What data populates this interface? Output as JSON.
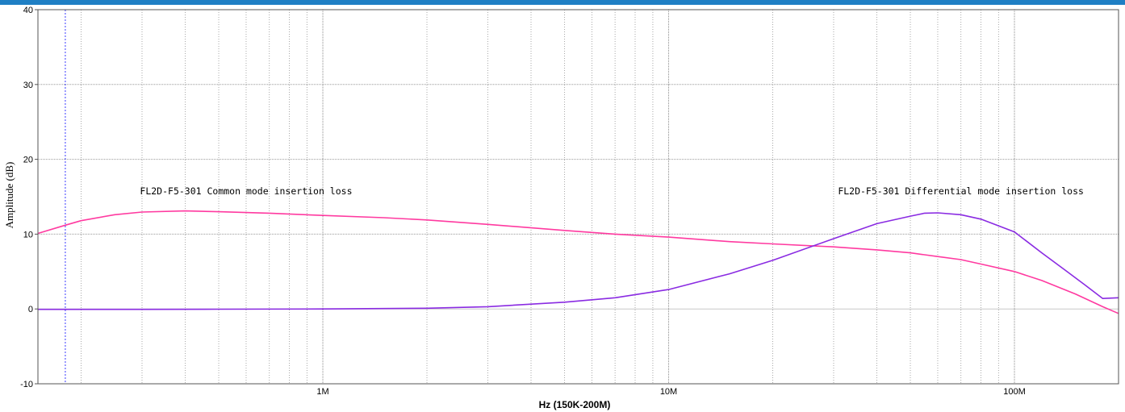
{
  "chart_data": {
    "type": "line",
    "title": "",
    "xlabel": "Hz  (150K-200M)",
    "ylabel": "Amplitude (dB)",
    "x_scale": "log",
    "xlim": [
      150000,
      200000000
    ],
    "ylim": [
      -10,
      40
    ],
    "y_ticks": [
      -10,
      0,
      10,
      20,
      30,
      40
    ],
    "x_tick_labels": [
      {
        "value": 1000000,
        "label": "1M"
      },
      {
        "value": 10000000,
        "label": "10M"
      },
      {
        "value": 100000000,
        "label": "100M"
      }
    ],
    "grid": true,
    "marker_frequency": 180000,
    "annotations": [
      {
        "text": "FL2D-F5-301 Common mode insertion loss",
        "x": 600000,
        "y": 15.3
      },
      {
        "text": "FL2D-F5-301 Differential mode insertion loss",
        "x": 70000000,
        "y": 15.3
      }
    ],
    "series": [
      {
        "name": "FL2D-F5-301 Common mode insertion loss",
        "color": "#ff3aa0",
        "x": [
          150000,
          180000,
          200000,
          250000,
          300000,
          400000,
          500000,
          700000,
          1000000,
          1500000,
          2000000,
          3000000,
          5000000,
          7000000,
          10000000,
          15000000,
          20000000,
          30000000,
          40000000,
          50000000,
          60000000,
          70000000,
          80000000,
          100000000,
          120000000,
          150000000,
          180000000,
          200000000
        ],
        "y": [
          10.1,
          11.2,
          11.8,
          12.6,
          12.95,
          13.1,
          13.0,
          12.8,
          12.5,
          12.2,
          11.9,
          11.3,
          10.5,
          10.0,
          9.6,
          9.0,
          8.7,
          8.3,
          7.9,
          7.5,
          7.0,
          6.6,
          6.0,
          5.0,
          3.8,
          2.0,
          0.3,
          -0.6
        ]
      },
      {
        "name": "FL2D-F5-301 Differential mode insertion loss",
        "color": "#8a2be2",
        "x": [
          150000,
          300000,
          500000,
          1000000,
          2000000,
          3000000,
          5000000,
          7000000,
          10000000,
          15000000,
          20000000,
          30000000,
          40000000,
          50000000,
          55000000,
          60000000,
          70000000,
          80000000,
          100000000,
          120000000,
          140000000,
          160000000,
          180000000,
          200000000
        ],
        "y": [
          -0.05,
          -0.05,
          -0.03,
          0.0,
          0.1,
          0.3,
          0.9,
          1.5,
          2.6,
          4.7,
          6.5,
          9.4,
          11.4,
          12.4,
          12.8,
          12.85,
          12.6,
          12.0,
          10.3,
          7.5,
          5.2,
          3.2,
          1.4,
          1.5
        ]
      }
    ]
  }
}
